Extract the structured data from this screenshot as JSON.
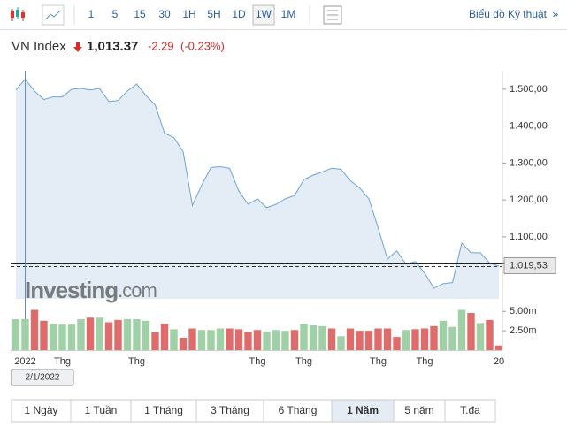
{
  "toolbar": {
    "intervals": [
      "1",
      "5",
      "15",
      "30",
      "1H",
      "5H",
      "1D",
      "1W",
      "1M"
    ],
    "selected": 7,
    "technical_link": "Biểu đồ Kỹ thuật",
    "more": "»"
  },
  "header": {
    "name": "VN Index",
    "price": "1,013.37",
    "change": "-2.29",
    "change_pct": "(-0.23%)"
  },
  "chart_data": [
    {
      "type": "area",
      "color": "#6ea3d2",
      "fill": "#e4edf6",
      "categories": [
        null,
        "2022",
        null,
        null,
        null,
        "Thg",
        null,
        null,
        null,
        null,
        null,
        null,
        null,
        "Thg",
        null,
        null,
        null,
        null,
        null,
        null,
        null,
        null,
        null,
        null,
        null,
        null,
        "Thg",
        null,
        null,
        null,
        null,
        "Thg",
        null,
        null,
        null,
        null,
        null,
        null,
        null,
        "Thg",
        null,
        null,
        null,
        null,
        "Thg",
        null,
        null,
        null,
        null,
        null,
        null,
        null,
        "20"
      ],
      "values": [
        1498,
        1527,
        1495,
        1472,
        1479,
        1479,
        1500,
        1502,
        1498,
        1502,
        1467,
        1469,
        1495,
        1514,
        1483,
        1457,
        1381,
        1369,
        1331,
        1185,
        1240,
        1288,
        1290,
        1286,
        1224,
        1188,
        1203,
        1179,
        1188,
        1203,
        1212,
        1255,
        1267,
        1276,
        1286,
        1283,
        1252,
        1233,
        1203,
        1124,
        1040,
        1062,
        1026,
        1033,
        1002,
        961,
        973,
        976,
        1083,
        1057,
        1057,
        1029,
        1021
      ],
      "ylim": [
        932,
        1538
      ],
      "yticks": [
        {
          "value": 1100,
          "label": "1.100,00"
        },
        {
          "value": 1200,
          "label": "1.200,00"
        },
        {
          "value": 1300,
          "label": "1.300,00"
        },
        {
          "value": 1400,
          "label": "1.400,00"
        },
        {
          "value": 1500,
          "label": "1.500,00"
        }
      ],
      "price_line": {
        "value": 1019.53,
        "label": "1.019,53"
      },
      "crosshair": {
        "index": 1,
        "label": "2/1/2022"
      },
      "watermark": [
        "Investing",
        ".com"
      ]
    },
    {
      "type": "bar",
      "up_color": "#9fd0a6",
      "down_color": "#e06b6b",
      "values": [
        4.0,
        4.0,
        5.2,
        3.8,
        3.4,
        3.3,
        3.3,
        4.0,
        4.2,
        4.2,
        3.6,
        3.9,
        4.0,
        4.0,
        3.8,
        2.3,
        3.4,
        2.7,
        1.6,
        2.8,
        2.6,
        2.6,
        2.8,
        2.8,
        2.7,
        2.3,
        2.6,
        2.4,
        2.6,
        2.5,
        2.6,
        3.4,
        3.2,
        3.1,
        2.8,
        1.8,
        2.8,
        2.5,
        2.5,
        2.8,
        2.8,
        1.7,
        2.6,
        2.7,
        2.8,
        3.1,
        3.8,
        3.0,
        5.2,
        4.8,
        3.5,
        3.9,
        0.6
      ],
      "colors": [
        "up",
        "up",
        "down",
        "down",
        "up",
        "up",
        "up",
        "up",
        "down",
        "up",
        "down",
        "down",
        "up",
        "up",
        "up",
        "down",
        "down",
        "up",
        "down",
        "down",
        "up",
        "up",
        "up",
        "down",
        "down",
        "down",
        "down",
        "up",
        "up",
        "up",
        "down",
        "up",
        "up",
        "up",
        "down",
        "up",
        "down",
        "down",
        "down",
        "down",
        "down",
        "down",
        "up",
        "down",
        "down",
        "down",
        "up",
        "up",
        "up",
        "down",
        "up",
        "down",
        "down"
      ],
      "ylim": [
        0,
        5.6
      ],
      "yticks": [
        {
          "value": 2.5,
          "label": "2.50m"
        },
        {
          "value": 5,
          "label": "5.00m"
        }
      ]
    }
  ],
  "tabs": {
    "items": [
      "1 Ngày",
      "1 Tuần",
      "1 Tháng",
      "3 Tháng",
      "6 Tháng",
      "1 Năm",
      "5 năm",
      "T.đa"
    ],
    "selected": 5
  }
}
